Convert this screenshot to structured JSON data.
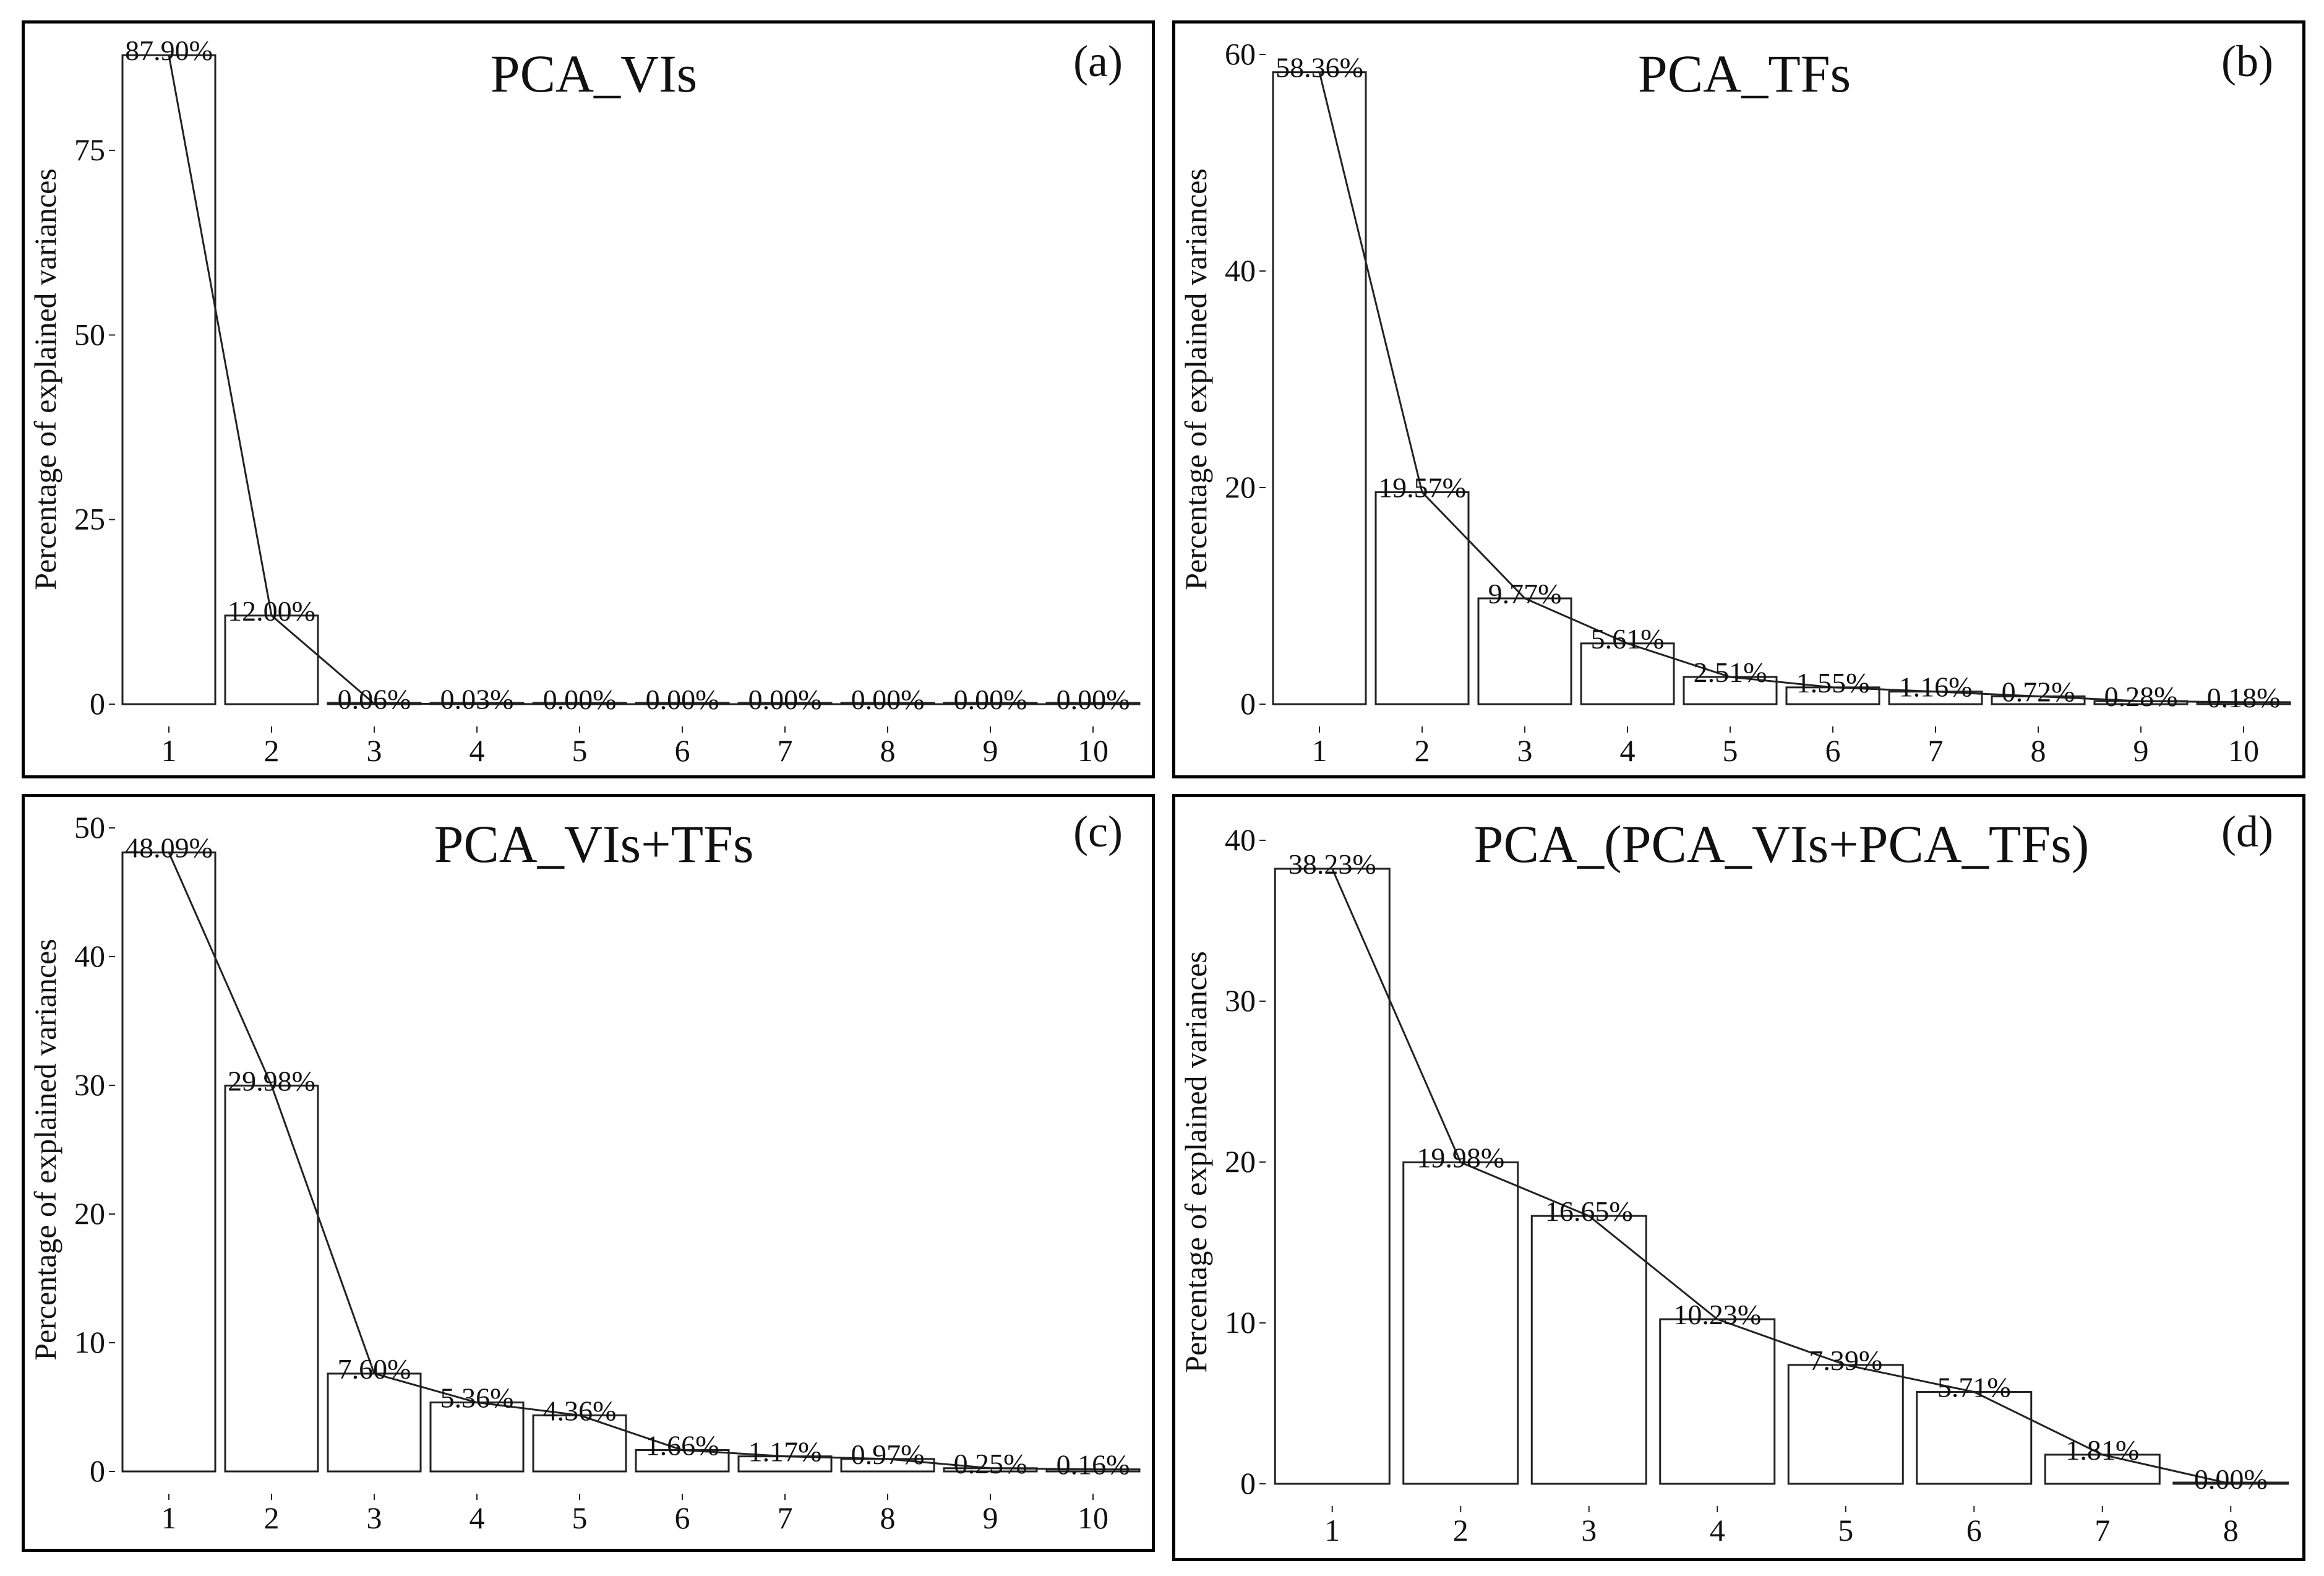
{
  "chart_data": [
    {
      "type": "bar",
      "id": "a",
      "panel_label": "(a)",
      "title": "PCA_VIs",
      "ylabel": "Percentage of explained variances",
      "xlabel": "",
      "categories": [
        "1",
        "2",
        "3",
        "4",
        "5",
        "6",
        "7",
        "8",
        "9",
        "10"
      ],
      "values": [
        87.9,
        12.0,
        0.06,
        0.03,
        0.0,
        0.0,
        0.0,
        0.0,
        0.0,
        0.0
      ],
      "data_labels": [
        "87.90%",
        "12.00%",
        "0.06%",
        "0.03%",
        "0.00%",
        "0.00%",
        "0.00%",
        "0.00%",
        "0.00%",
        "0.00%"
      ],
      "yticks": [
        "0",
        "25",
        "50",
        "75"
      ],
      "ytick_values": [
        0,
        25,
        50,
        75
      ],
      "ylim": [
        0,
        88
      ],
      "overlay_line": true,
      "grid": false
    },
    {
      "type": "bar",
      "id": "b",
      "panel_label": "(b)",
      "title": "PCA_TFs",
      "ylabel": "Percentage of explained variances",
      "xlabel": "",
      "categories": [
        "1",
        "2",
        "3",
        "4",
        "5",
        "6",
        "7",
        "8",
        "9",
        "10"
      ],
      "values": [
        58.36,
        19.57,
        9.77,
        5.61,
        2.51,
        1.55,
        1.16,
        0.72,
        0.28,
        0.18
      ],
      "data_labels": [
        "58.36%",
        "19.57%",
        "9.77%",
        "5.61%",
        "2.51%",
        "1.55%",
        "1.16%",
        "0.72%",
        "0.28%",
        "0.18%"
      ],
      "yticks": [
        "0",
        "20",
        "40",
        "60"
      ],
      "ytick_values": [
        0,
        20,
        40,
        60
      ],
      "ylim": [
        0,
        60
      ],
      "overlay_line": true,
      "grid": false
    },
    {
      "type": "bar",
      "id": "c",
      "panel_label": "(c)",
      "title": "PCA_VIs+TFs",
      "ylabel": "Percentage of explained variances",
      "xlabel": "",
      "categories": [
        "1",
        "2",
        "3",
        "4",
        "5",
        "6",
        "7",
        "8",
        "9",
        "10"
      ],
      "values": [
        48.09,
        29.98,
        7.6,
        5.36,
        4.36,
        1.66,
        1.17,
        0.97,
        0.25,
        0.16
      ],
      "data_labels": [
        "48.09%",
        "29.98%",
        "7.60%",
        "5.36%",
        "4.36%",
        "1.66%",
        "1.17%",
        "0.97%",
        "0.25%",
        "0.16%"
      ],
      "yticks": [
        "0",
        "10",
        "20",
        "30",
        "40",
        "50"
      ],
      "ytick_values": [
        0,
        10,
        20,
        30,
        40,
        50
      ],
      "ylim": [
        0,
        50
      ],
      "overlay_line": true,
      "grid": false
    },
    {
      "type": "bar",
      "id": "d",
      "panel_label": "(d)",
      "title": "PCA_(PCA_VIs+PCA_TFs)",
      "ylabel": "Percentage of explained variances",
      "xlabel": "",
      "categories": [
        "1",
        "2",
        "3",
        "4",
        "5",
        "6",
        "7",
        "8"
      ],
      "values": [
        38.23,
        19.98,
        16.65,
        10.23,
        7.39,
        5.71,
        1.81,
        0.0
      ],
      "data_labels": [
        "38.23%",
        "19.98%",
        "16.65%",
        "10.23%",
        "7.39%",
        "5.71%",
        "1.81%",
        "0.00%"
      ],
      "yticks": [
        "0",
        "10",
        "20",
        "30",
        "40"
      ],
      "ytick_values": [
        0,
        10,
        20,
        30,
        40
      ],
      "ylim": [
        0,
        40
      ],
      "overlay_line": true,
      "grid": false
    }
  ]
}
